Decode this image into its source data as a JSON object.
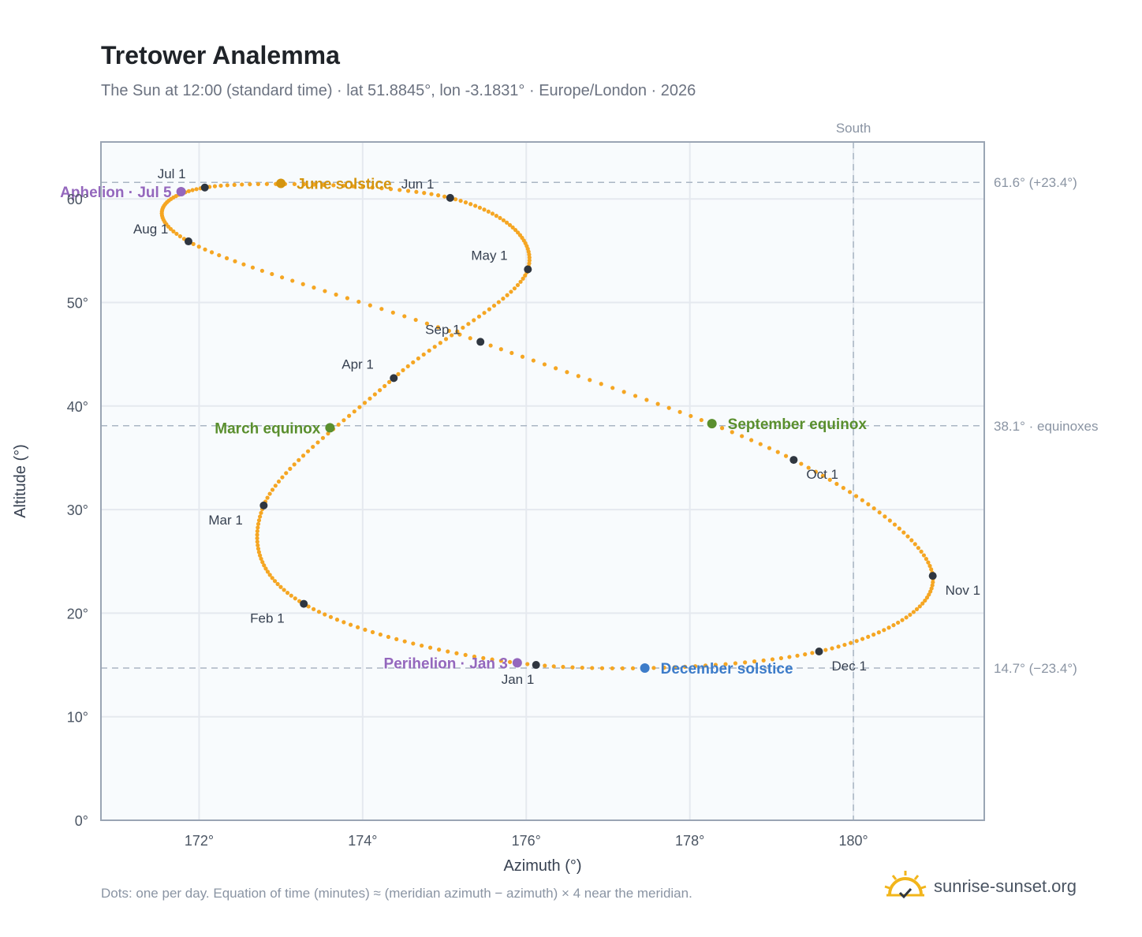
{
  "header": {
    "title": "Tretower Analemma",
    "subtitle": "The Sun at 12:00 (standard time) · lat 51.8845°, lon -3.1831° · Europe/London · 2026"
  },
  "footer": {
    "note": "Dots: one per day. Equation of time (minutes) ≈ (meridian azimuth − azimuth) × 4 near the meridian.",
    "brand": "sunrise-sunset.org"
  },
  "colors": {
    "curve": "#f5a623",
    "month_dot": "#2f3640",
    "june_solstice": "#d4950f",
    "december_solstice": "#3d7cc9",
    "equinox": "#5a8f2e",
    "apsis": "#9467bd",
    "grid": "#e5e9ef",
    "reference_line": "#aab6c4",
    "plot_bg": "#f8fbfd",
    "plot_border": "#9aa5b4"
  },
  "chart_data": {
    "type": "scatter",
    "xlabel": "Azimuth (°)",
    "ylabel": "Altitude (°)",
    "xlim": [
      170.8,
      181.6
    ],
    "ylim": [
      0,
      65.5
    ],
    "x_ticks": [
      {
        "value": 172,
        "label": "172°"
      },
      {
        "value": 174,
        "label": "174°"
      },
      {
        "value": 176,
        "label": "176°"
      },
      {
        "value": 178,
        "label": "178°"
      },
      {
        "value": 180,
        "label": "180°"
      }
    ],
    "y_ticks": [
      {
        "value": 0,
        "label": "0°"
      },
      {
        "value": 10,
        "label": "10°"
      },
      {
        "value": 20,
        "label": "20°"
      },
      {
        "value": 30,
        "label": "30°"
      },
      {
        "value": 40,
        "label": "40°"
      },
      {
        "value": 50,
        "label": "50°"
      },
      {
        "value": 60,
        "label": "60°"
      }
    ],
    "grid": true,
    "south_line": {
      "azimuth": 180,
      "label": "South"
    },
    "reference_lines": [
      {
        "altitude": 61.6,
        "label": "61.6° (+23.4°)"
      },
      {
        "altitude": 38.1,
        "label": "38.1° · equinoxes"
      },
      {
        "altitude": 14.7,
        "label": "14.7° (−23.4°)"
      }
    ],
    "months": [
      {
        "label": "Jan 1",
        "az": 176.12,
        "alt": 15.0
      },
      {
        "label": "Feb 1",
        "az": 173.28,
        "alt": 20.9
      },
      {
        "label": "Mar 1",
        "az": 172.79,
        "alt": 30.4
      },
      {
        "label": "Apr 1",
        "az": 174.38,
        "alt": 42.7
      },
      {
        "label": "May 1",
        "az": 176.02,
        "alt": 53.2
      },
      {
        "label": "Jun 1",
        "az": 175.07,
        "alt": 60.1
      },
      {
        "label": "Jul 1",
        "az": 172.07,
        "alt": 61.1
      },
      {
        "label": "Aug 1",
        "az": 171.87,
        "alt": 55.9
      },
      {
        "label": "Sep 1",
        "az": 175.44,
        "alt": 46.2
      },
      {
        "label": "Oct 1",
        "az": 179.27,
        "alt": 34.8
      },
      {
        "label": "Nov 1",
        "az": 180.97,
        "alt": 23.6
      },
      {
        "label": "Dec 1",
        "az": 179.58,
        "alt": 16.3
      }
    ],
    "events": [
      {
        "label": "Perihelion · Jan 3",
        "az": 175.89,
        "alt": 15.2,
        "color_key": "apsis",
        "side": "left"
      },
      {
        "label": "March equinox",
        "az": 173.6,
        "alt": 37.9,
        "color_key": "equinox",
        "side": "left"
      },
      {
        "label": "June solstice",
        "az": 173.0,
        "alt": 61.5,
        "color_key": "june_solstice",
        "side": "right"
      },
      {
        "label": "Aphelion · Jul 5",
        "az": 171.78,
        "alt": 60.7,
        "color_key": "apsis",
        "side": "left"
      },
      {
        "label": "September equinox",
        "az": 178.27,
        "alt": 38.3,
        "color_key": "equinox",
        "side": "right"
      },
      {
        "label": "December solstice",
        "az": 177.45,
        "alt": 14.7,
        "color_key": "december_solstice",
        "side": "right"
      }
    ]
  }
}
